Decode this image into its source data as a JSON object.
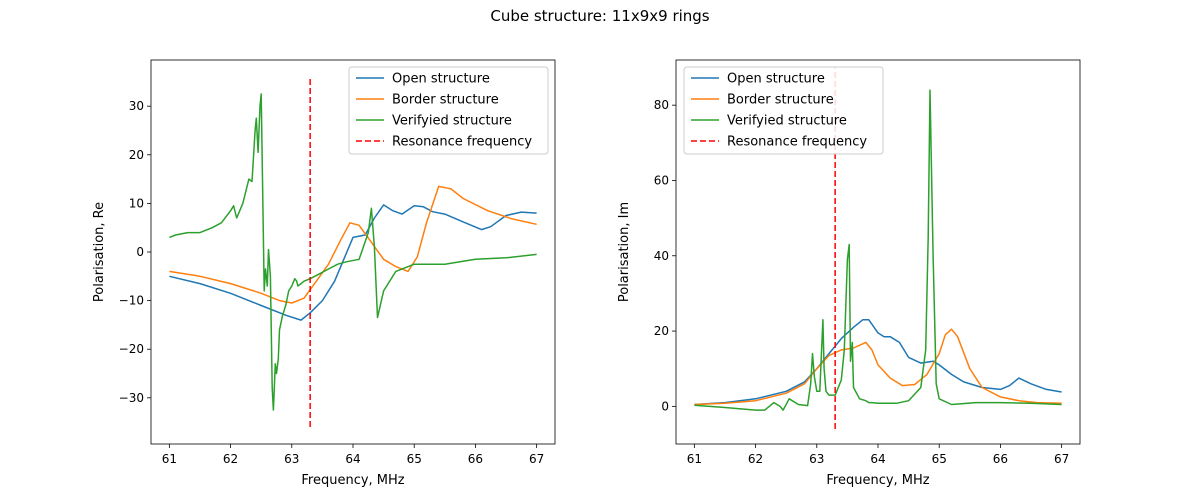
{
  "figure_title": "Cube structure: 11x9x9 rings",
  "colors": {
    "open": "#1f77b4",
    "border": "#ff7f0e",
    "verified": "#2ca02c",
    "resonance": "#ff0000"
  },
  "chart_data": [
    {
      "type": "line",
      "title": "",
      "xlabel": "Frequency, MHz",
      "ylabel": "Polarisation, Re",
      "xlim": [
        60.7,
        67.3
      ],
      "ylim": [
        -39.5,
        39.5
      ],
      "xticks": [
        61,
        62,
        63,
        64,
        65,
        66,
        67
      ],
      "yticks": [
        -30,
        -20,
        -10,
        0,
        10,
        20,
        30
      ],
      "grid": false,
      "legend_position": "top-right",
      "resonance": {
        "name": "Resonance frequency",
        "x": 63.3,
        "y": [
          -36,
          36
        ]
      },
      "series": [
        {
          "name": "Open structure",
          "key": "open",
          "x": [
            61,
            61.5,
            62,
            62.5,
            62.9,
            63.15,
            63.3,
            63.5,
            63.7,
            63.85,
            64.0,
            64.2,
            64.35,
            64.5,
            64.65,
            64.8,
            65.0,
            65.15,
            65.3,
            65.5,
            65.8,
            66.1,
            66.25,
            66.5,
            66.75,
            67.0
          ],
          "y": [
            -5,
            -6.5,
            -8.5,
            -11,
            -13,
            -14,
            -12.5,
            -10,
            -6,
            -1.5,
            3,
            3.5,
            7,
            9.7,
            8.5,
            7.8,
            9.5,
            9.3,
            8.3,
            7.8,
            6.2,
            4.6,
            5.2,
            7.5,
            8.2,
            8.0
          ]
        },
        {
          "name": "Border structure",
          "key": "border",
          "x": [
            61,
            61.5,
            62,
            62.5,
            62.8,
            63.0,
            63.2,
            63.4,
            63.6,
            63.8,
            63.95,
            64.1,
            64.3,
            64.5,
            64.7,
            64.9,
            65.05,
            65.2,
            65.4,
            65.6,
            65.8,
            66.2,
            66.6,
            67.0
          ],
          "y": [
            -4,
            -5,
            -6.5,
            -8.5,
            -10,
            -10.5,
            -9.5,
            -6,
            -2.5,
            2.5,
            6,
            5.5,
            2,
            -1.5,
            -3,
            -4,
            -1,
            6,
            13.5,
            13,
            11,
            8.5,
            6.8,
            5.7
          ]
        },
        {
          "name": "Verifyied structure",
          "key": "verified",
          "x": [
            61,
            61.1,
            61.3,
            61.5,
            61.7,
            61.85,
            62.0,
            62.05,
            62.1,
            62.2,
            62.3,
            62.35,
            62.4,
            62.42,
            62.45,
            62.48,
            62.5,
            62.55,
            62.57,
            62.6,
            62.62,
            62.65,
            62.68,
            62.7,
            62.73,
            62.75,
            62.78,
            62.8,
            62.85,
            62.9,
            62.95,
            63.0,
            63.05,
            63.08,
            63.1,
            63.15,
            63.2,
            63.3,
            63.45,
            63.6,
            63.75,
            63.9,
            64.1,
            64.25,
            64.3,
            64.35,
            64.4,
            64.5,
            64.7,
            65.0,
            65.5,
            66.0,
            66.5,
            67.0
          ],
          "y": [
            3,
            3.5,
            4,
            4,
            5,
            6,
            8.5,
            9.5,
            7,
            10,
            15,
            14.5,
            25,
            27.5,
            20.5,
            30,
            32.5,
            -8,
            -3.5,
            -7,
            0.5,
            -5,
            -28,
            -32.5,
            -23,
            -25,
            -22,
            -16,
            -13,
            -11,
            -8,
            -7,
            -5.5,
            -6,
            -7,
            -6.5,
            -6,
            -5.5,
            -4.5,
            -3.5,
            -2.5,
            -2,
            -1.5,
            4,
            9,
            1,
            -13.5,
            -8,
            -4,
            -2.5,
            -2.5,
            -1.5,
            -1.2,
            -0.5
          ]
        }
      ]
    },
    {
      "type": "line",
      "title": "",
      "xlabel": "Frequency, MHz",
      "ylabel": "Polarisation, Im",
      "xlim": [
        60.7,
        67.3
      ],
      "ylim": [
        -10,
        92
      ],
      "xticks": [
        61,
        62,
        63,
        64,
        65,
        66,
        67
      ],
      "yticks": [
        0,
        20,
        40,
        60,
        80
      ],
      "grid": false,
      "legend_position": "top-left",
      "resonance": {
        "name": "Resonance frequency",
        "x": 63.3,
        "y": [
          -6,
          90
        ]
      },
      "series": [
        {
          "name": "Open structure",
          "key": "open",
          "x": [
            61,
            61.5,
            62,
            62.5,
            62.8,
            63.0,
            63.2,
            63.4,
            63.6,
            63.75,
            63.85,
            64.0,
            64.1,
            64.2,
            64.35,
            64.5,
            64.7,
            64.9,
            65.0,
            65.2,
            65.4,
            65.7,
            66.0,
            66.15,
            66.3,
            66.5,
            66.75,
            67.0
          ],
          "y": [
            0.5,
            1,
            2,
            4,
            6.5,
            10,
            14,
            18,
            21,
            23,
            23,
            19.5,
            18.5,
            18.5,
            17,
            13,
            11.5,
            12,
            11,
            8.5,
            6.5,
            5,
            4.5,
            5.5,
            7.5,
            6,
            4.5,
            3.8
          ]
        },
        {
          "name": "Border structure",
          "key": "border",
          "x": [
            61,
            61.5,
            62,
            62.5,
            62.8,
            63.0,
            63.2,
            63.4,
            63.6,
            63.8,
            63.9,
            64.0,
            64.2,
            64.4,
            64.6,
            64.8,
            65.0,
            65.1,
            65.2,
            65.3,
            65.5,
            65.7,
            66.0,
            66.3,
            66.6,
            67.0
          ],
          "y": [
            0.5,
            0.8,
            1.5,
            3.5,
            6,
            10,
            13.5,
            15,
            15.5,
            17,
            15,
            11,
            7.5,
            5.5,
            5.8,
            8.5,
            14,
            19,
            20.5,
            18.5,
            10,
            5,
            2.5,
            1.5,
            1,
            0.8
          ]
        },
        {
          "name": "Verifyied structure",
          "key": "verified",
          "x": [
            61,
            61.5,
            62.0,
            62.15,
            62.3,
            62.4,
            62.45,
            62.55,
            62.7,
            62.85,
            62.9,
            62.93,
            62.96,
            63.0,
            63.05,
            63.1,
            63.12,
            63.15,
            63.2,
            63.3,
            63.4,
            63.45,
            63.5,
            63.53,
            63.55,
            63.58,
            63.6,
            63.7,
            63.8,
            63.85,
            63.9,
            64.0,
            64.3,
            64.5,
            64.7,
            64.78,
            64.82,
            64.85,
            64.9,
            64.95,
            65.0,
            65.2,
            65.6,
            66.0,
            66.5,
            67.0
          ],
          "y": [
            0.3,
            -0.3,
            -1,
            -1,
            1,
            0,
            -1,
            2,
            0.5,
            0.2,
            6,
            14,
            8,
            4,
            4,
            23,
            10,
            4,
            3,
            3,
            7,
            15,
            39,
            43,
            12,
            17,
            5,
            2,
            1.5,
            1,
            1,
            0.8,
            0.8,
            1.5,
            5,
            15,
            45,
            84,
            40,
            6,
            2,
            0.5,
            1,
            1,
            0.8,
            0.5
          ]
        }
      ]
    }
  ]
}
